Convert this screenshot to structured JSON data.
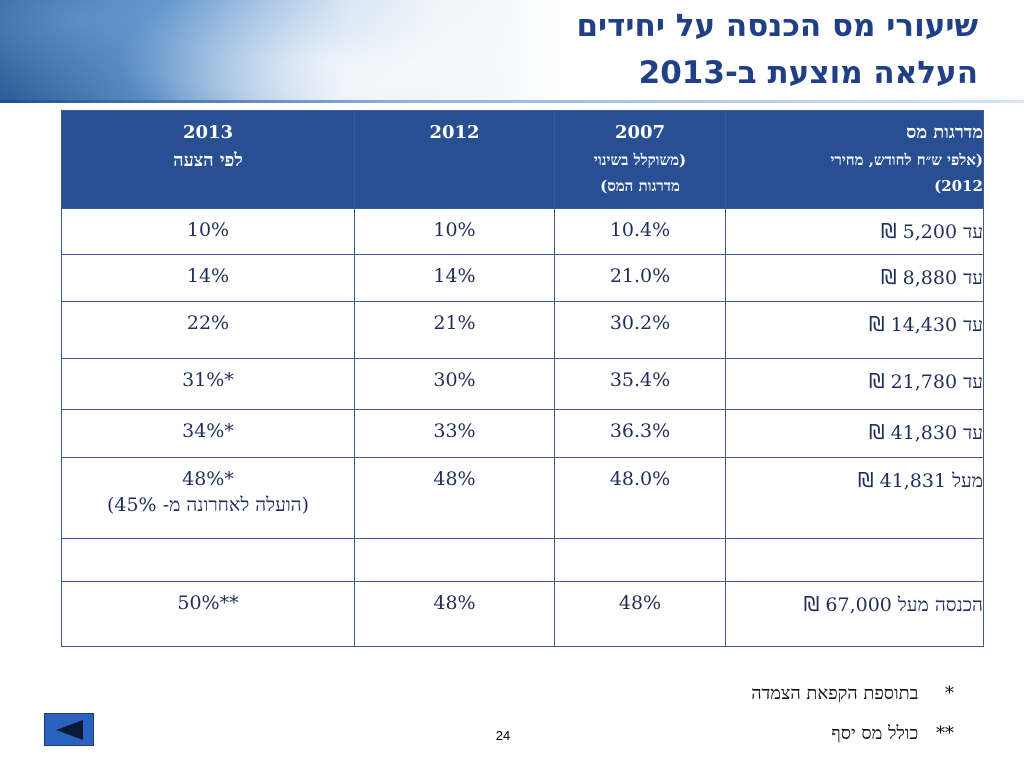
{
  "title": {
    "line1": "שיעורי מס הכנסה על יחידים",
    "line2": "העלאה מוצעת ב-2013"
  },
  "table": {
    "headers": {
      "tier": {
        "main": "מדרגות מס",
        "sub1": "(אלפי ש״ח לחודש, מחירי",
        "sub2": "2012)"
      },
      "y2007": {
        "main": "2007",
        "sub1": "(משוקלל בשינוי",
        "sub2": "מדרגות המס)"
      },
      "y2012": {
        "main": "2012"
      },
      "y2013": {
        "main": "2013",
        "sub1": "לפי הצעה"
      }
    },
    "rows": [
      {
        "tier": "עד 5,200",
        "y2007": "10.4%",
        "y2012": "10%",
        "y2013": "10%",
        "note": ""
      },
      {
        "tier": "עד 8,880",
        "y2007": "21.0%",
        "y2012": "14%",
        "y2013": "14%",
        "note": ""
      },
      {
        "tier": "עד 14,430",
        "y2007": "30.2%",
        "y2012": "21%",
        "y2013": "22%",
        "note": ""
      },
      {
        "tier": "עד 21,780",
        "y2007": "35.4%",
        "y2012": "30%",
        "y2013": "*31%",
        "note": ""
      },
      {
        "tier": "עד 41,830",
        "y2007": "36.3%",
        "y2012": "33%",
        "y2013": "*34%",
        "note": ""
      },
      {
        "tier": "מעל 41,831",
        "y2007": "48.0%",
        "y2012": "48%",
        "y2013": "*48%",
        "note": "(הועלה לאחרונה מ- 45%)"
      },
      {
        "tier": "",
        "y2007": "",
        "y2012": "",
        "y2013": "",
        "note": ""
      },
      {
        "tier": "הכנסה מעל 67,000",
        "y2007": "48%",
        "y2012": "48%",
        "y2013": "**50%",
        "note": ""
      }
    ],
    "currency_symbol": "₪"
  },
  "footnotes": {
    "f1_mark": "*",
    "f1_text": "בתוספת הקפאת הצמדה",
    "f2_mark": "**",
    "f2_text": "כולל מס יסף"
  },
  "page_number": "24",
  "icons": {
    "back": "back-arrow-icon"
  },
  "colors": {
    "header_bg": "#284f92",
    "title": "#1f3f86",
    "border": "#3d5a93"
  }
}
